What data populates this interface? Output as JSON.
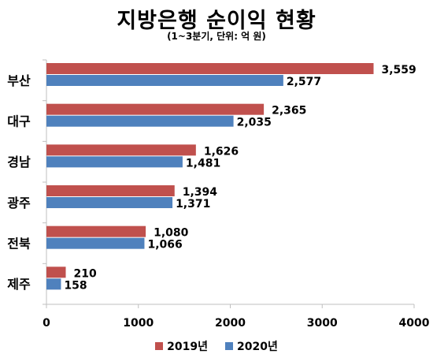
{
  "chart_data": {
    "type": "bar",
    "orientation": "horizontal",
    "title": "지방은행 순이익 현황",
    "subtitle": "(1~3분기, 단위: 억 원)",
    "categories": [
      "부산",
      "대구",
      "경남",
      "광주",
      "전북",
      "제주"
    ],
    "series": [
      {
        "name": "2019년",
        "color": "#c0504d",
        "values": [
          3559,
          2365,
          1626,
          1394,
          1080,
          210
        ],
        "labels": [
          "3,559",
          "2,365",
          "1,626",
          "1,394",
          "1,080",
          "210"
        ]
      },
      {
        "name": "2020년",
        "color": "#4f81bd",
        "values": [
          2577,
          2035,
          1481,
          1371,
          1066,
          158
        ],
        "labels": [
          "2,577",
          "2,035",
          "1,481",
          "1,371",
          "1,066",
          "158"
        ]
      }
    ],
    "xlim": [
      0,
      4000
    ],
    "xticks": [
      "0",
      "1000",
      "2000",
      "3000",
      "4000"
    ],
    "grid": false,
    "legend_position": "bottom"
  }
}
